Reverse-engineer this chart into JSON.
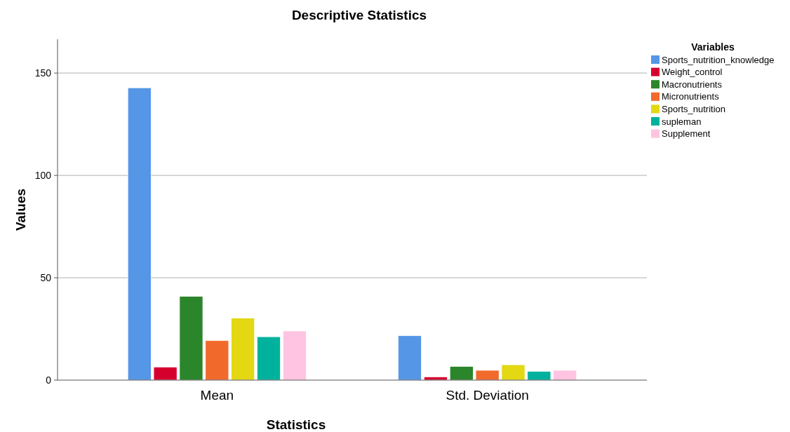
{
  "chart_data": {
    "type": "bar",
    "title": "Descriptive Statistics",
    "xlabel": "Statistics",
    "ylabel": "Values",
    "legend_title": "Variables",
    "categories": [
      "Mean",
      "Std. Deviation"
    ],
    "series": [
      {
        "name": "Sports_nutrition_knowledge",
        "color": "#5596e6",
        "values": [
          142.8,
          21.7
        ]
      },
      {
        "name": "Weight_control",
        "color": "#d6002f",
        "values": [
          6.4,
          1.6
        ]
      },
      {
        "name": "Macronutrients",
        "color": "#2b852b",
        "values": [
          40.9,
          6.7
        ]
      },
      {
        "name": "Micronutrients",
        "color": "#f2692c",
        "values": [
          19.3,
          4.8
        ]
      },
      {
        "name": "Sports_nutrition",
        "color": "#e3d812",
        "values": [
          30.3,
          7.5
        ]
      },
      {
        "name": "supleman",
        "color": "#00b29d",
        "values": [
          21.2,
          4.3
        ]
      },
      {
        "name": "Supplement",
        "color": "#ffc4e1",
        "values": [
          24.0,
          4.8
        ]
      }
    ],
    "ylim": [
      0,
      166.5
    ],
    "yticks": [
      0,
      50,
      100,
      150
    ],
    "grid": "y",
    "legend": "top right"
  }
}
